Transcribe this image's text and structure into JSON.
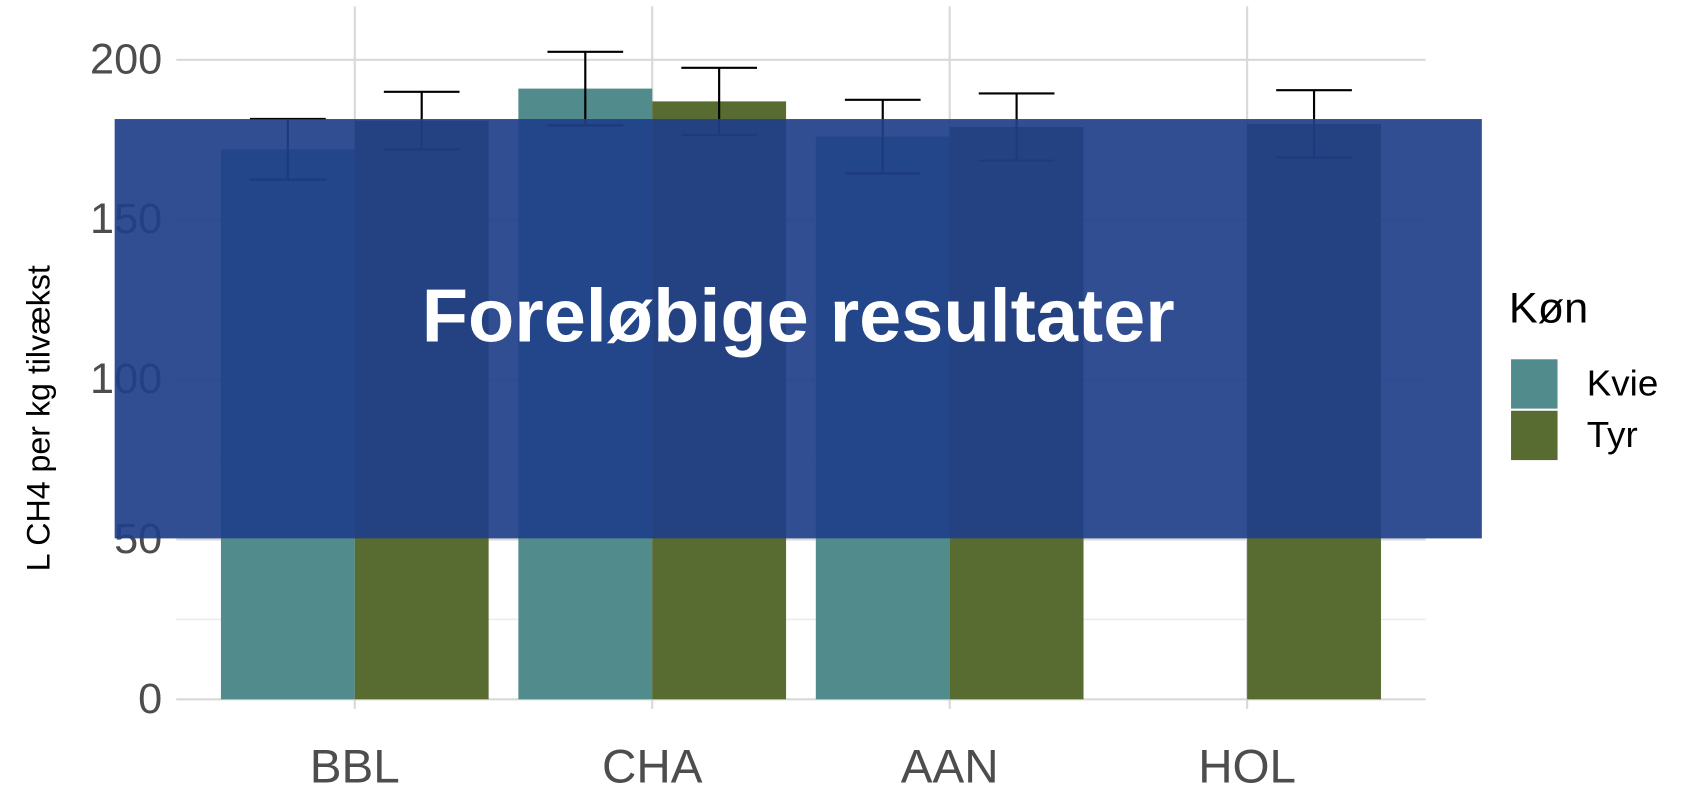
{
  "chart_data": {
    "type": "bar",
    "y_label": "L CH4 per kg tilvækst",
    "categories": [
      "BBL",
      "CHA",
      "AAN",
      "HOL"
    ],
    "series": [
      {
        "name": "Kvie",
        "color": "#528b8b",
        "values": [
          172,
          191,
          176,
          null
        ],
        "errors": [
          9.5,
          11.5,
          11.5,
          null
        ]
      },
      {
        "name": "Tyr",
        "color": "#586b30",
        "values": [
          181,
          187,
          179,
          180
        ],
        "errors": [
          9,
          10.5,
          10.5,
          10.5
        ]
      }
    ],
    "ylim": [
      -3,
      212
    ],
    "yticks": [
      0,
      50,
      100,
      150,
      200
    ],
    "yminor": [
      25,
      75,
      125,
      175
    ],
    "grid": true,
    "legend_title": "Køn",
    "legend": "right",
    "overlay_text": "Foreløbige resultater"
  }
}
